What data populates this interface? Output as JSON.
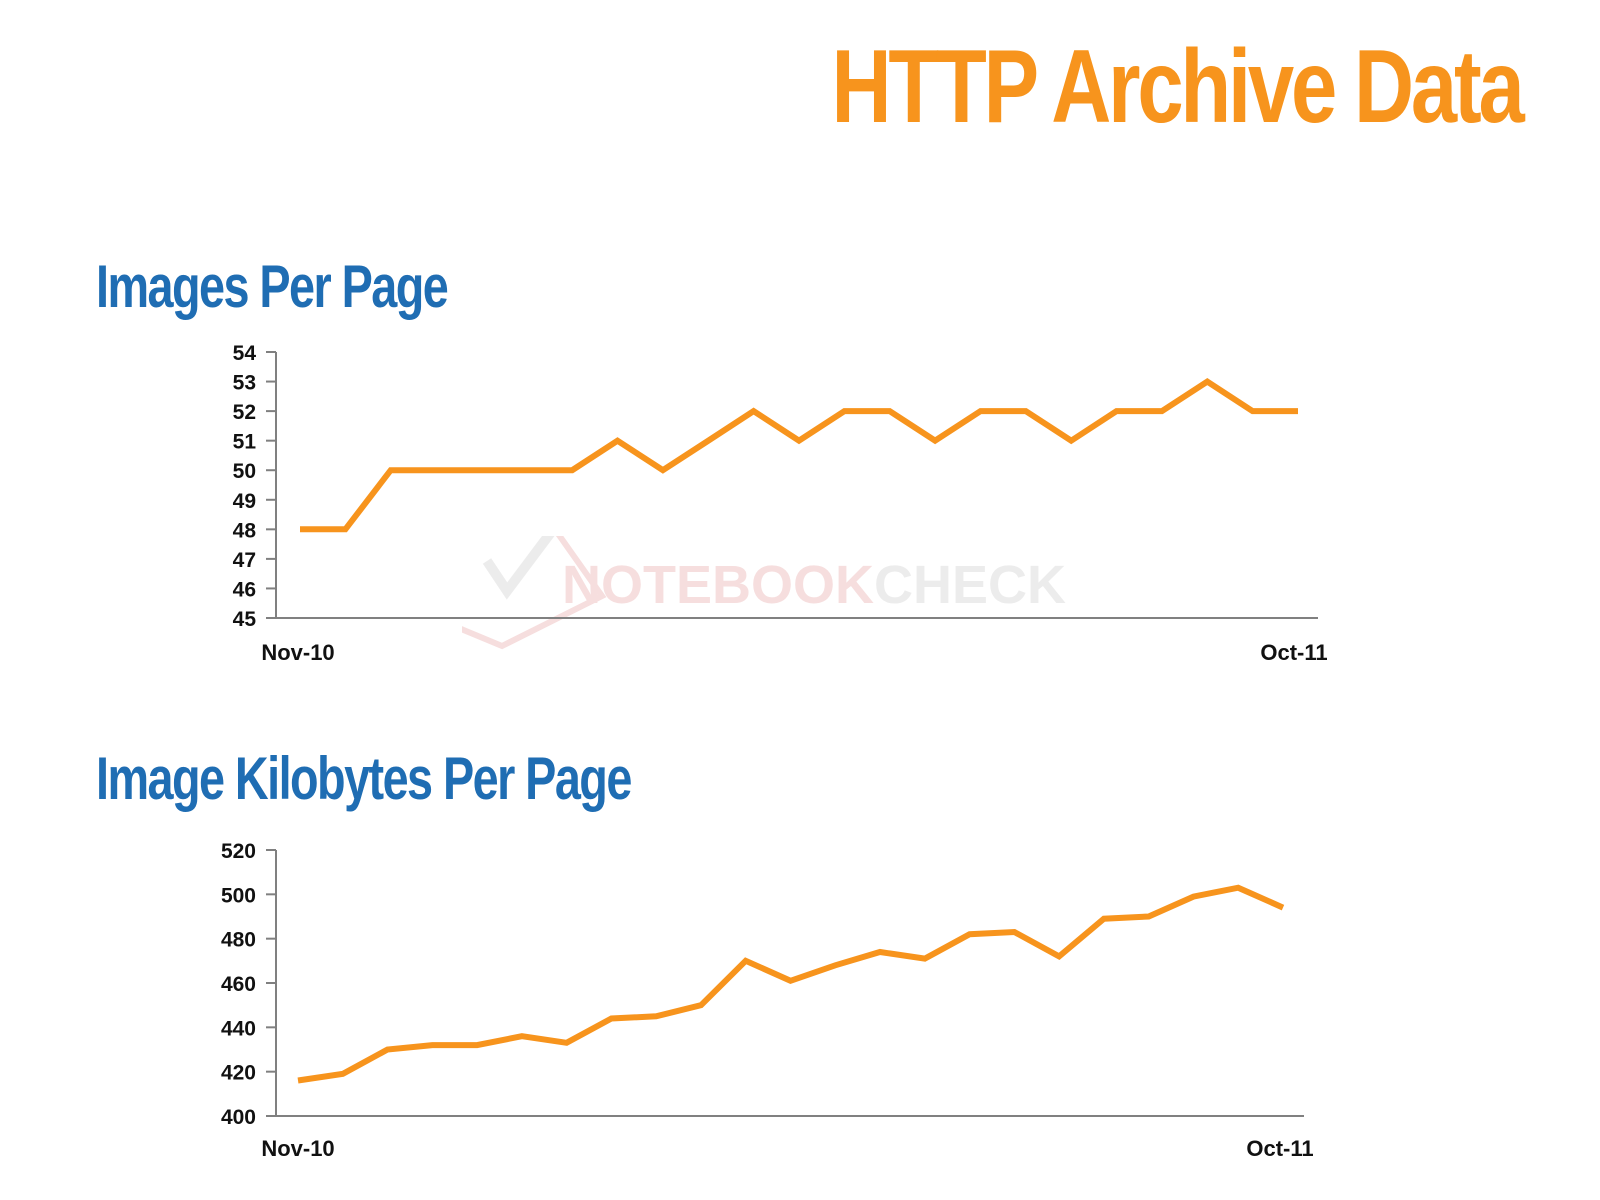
{
  "page": {
    "title": "HTTP Archive Data",
    "title_color": "#f7941d",
    "subtitle_color": "#1f6db3",
    "line_color": "#f7941d",
    "axis_color": "#808080"
  },
  "watermark": {
    "brand_a": "NOTEBOOK",
    "brand_b": "CHECK",
    "color_a": "#f6dede",
    "color_b": "#ececec"
  },
  "chart_data": [
    {
      "type": "line",
      "title": "Images Per Page",
      "x_start_label": "Nov-10",
      "x_end_label": "Oct-11",
      "ylim": [
        45,
        54
      ],
      "yticks": [
        45,
        46,
        47,
        48,
        49,
        50,
        51,
        52,
        53,
        54
      ],
      "grid": false,
      "legend": "none",
      "values": [
        48,
        48,
        50,
        50,
        50,
        50,
        50,
        51,
        50,
        51,
        52,
        51,
        52,
        52,
        51,
        52,
        52,
        51,
        52,
        52,
        53,
        52,
        52
      ]
    },
    {
      "type": "line",
      "title": "Image Kilobytes Per Page",
      "x_start_label": "Nov-10",
      "x_end_label": "Oct-11",
      "ylim": [
        400,
        520
      ],
      "yticks": [
        400,
        420,
        440,
        460,
        480,
        500,
        520
      ],
      "grid": false,
      "legend": "none",
      "values": [
        416,
        419,
        430,
        432,
        432,
        436,
        433,
        444,
        445,
        450,
        470,
        461,
        468,
        474,
        471,
        482,
        483,
        472,
        489,
        490,
        499,
        503,
        494
      ]
    }
  ]
}
